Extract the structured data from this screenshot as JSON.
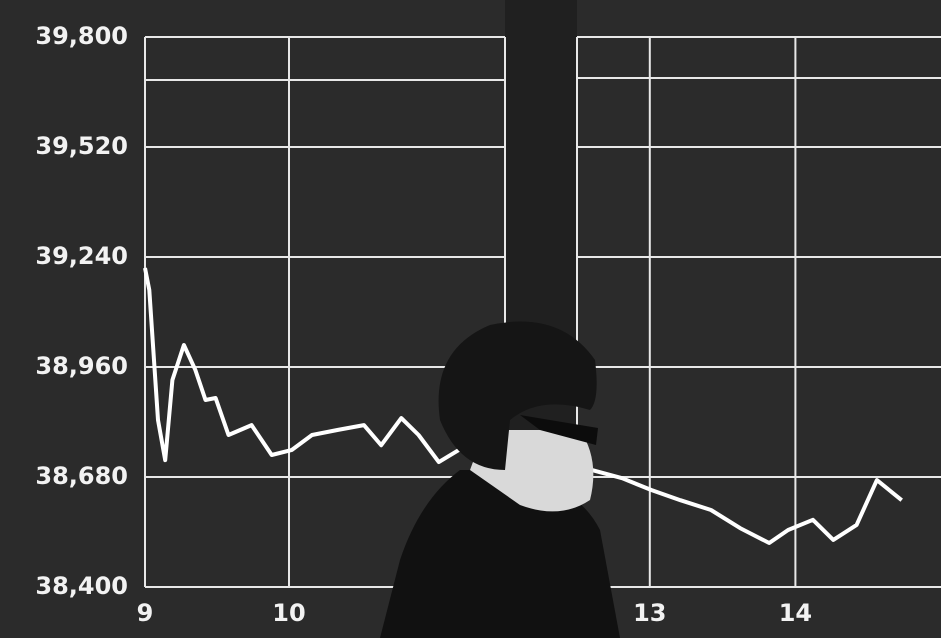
{
  "chart_data": {
    "type": "line",
    "x": [
      9.0,
      9.03,
      9.09,
      9.14,
      9.19,
      9.27,
      9.35,
      9.42,
      9.49,
      9.58,
      9.74,
      9.88,
      10.02,
      10.16,
      10.34,
      10.52,
      10.64,
      10.78,
      10.9,
      11.04,
      11.18,
      null,
      12.6,
      12.81,
      13.01,
      13.21,
      13.42,
      13.62,
      13.82,
      13.95,
      14.12,
      14.26,
      14.42,
      14.56,
      14.73
    ],
    "series": [
      {
        "color": "#ffffff",
        "values": [
          39212,
          39156,
          38825,
          38723,
          38927,
          39016,
          38952,
          38876,
          38881,
          38787,
          38812,
          38736,
          38749,
          38787,
          38800,
          38812,
          38761,
          38830,
          38787,
          38718,
          38749,
          null,
          38698,
          38677,
          38647,
          38621,
          38596,
          38550,
          38512,
          38545,
          38571,
          38520,
          38558,
          38672,
          38621
        ]
      }
    ],
    "xlim": [
      9,
      15
    ],
    "break": [
      11.5,
      12.5
    ],
    "xticks": [
      9,
      10,
      13,
      14
    ],
    "ylim": [
      38400,
      39800
    ],
    "yticks": [
      {
        "value": 38400,
        "label": "38,400"
      },
      {
        "value": 38680,
        "label": "38,680"
      },
      {
        "value": 38960,
        "label": "38,960"
      },
      {
        "value": 39240,
        "label": "39,240"
      },
      {
        "value": 39520,
        "label": "39,520"
      },
      {
        "value": 39800,
        "label": "39,800"
      }
    ],
    "grid": true
  }
}
